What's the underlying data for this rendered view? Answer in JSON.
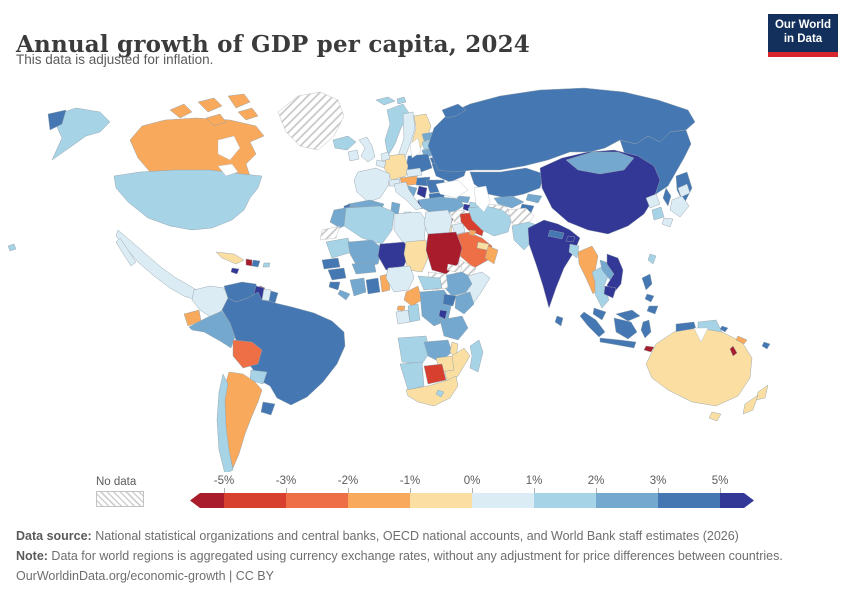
{
  "header": {
    "title": "Annual growth of GDP per capita, 2024",
    "subtitle": "This data is adjusted for inflation.",
    "logo": {
      "line1": "Our World",
      "line2": "in Data",
      "bg_color": "#12305b",
      "accent_color": "#d7262c"
    }
  },
  "legend": {
    "no_data_label": "No data",
    "tick_labels": [
      "-5%",
      "-3%",
      "-2%",
      "-1%",
      "0%",
      "1%",
      "2%",
      "3%",
      "5%"
    ],
    "colors": [
      "#a81c2c",
      "#d7402f",
      "#ee6e45",
      "#f9a95c",
      "#fbdfa2",
      "#dcecf5",
      "#a7d3e6",
      "#74a8ce",
      "#4577b2",
      "#333795"
    ]
  },
  "footer": {
    "data_source_label": "Data source:",
    "data_source_text": " National statistical organizations and central banks, OECD national accounts, and World Bank staff estimates (2026)",
    "note_label": "Note:",
    "note_text": " Data for world regions is aggregated using currency exchange rates, without any adjustment for price differences between countries.",
    "citation": "OurWorldinData.org/economic-growth | CC BY"
  },
  "chart_data": {
    "type": "choropleth_map",
    "title": "Annual growth of GDP per capita, 2024",
    "subtitle": "This data is adjusted for inflation.",
    "unit": "%",
    "legend_bins": [
      "< -5%",
      "-5% to -3%",
      "-3% to -2%",
      "-2% to -1%",
      "-1% to 0%",
      "0% to 1%",
      "1% to 2%",
      "2% to 3%",
      "3% to 5%",
      "> 5%"
    ],
    "countries": {
      "greenland": {
        "label": "Greenland",
        "bin": null
      },
      "canada": {
        "label": "Canada",
        "bin": 3
      },
      "usa": {
        "label": "United States",
        "bin": 6
      },
      "mexico": {
        "label": "Mexico",
        "bin": 5
      },
      "guatemala": {
        "label": "Guatemala",
        "bin": 7
      },
      "honduras": {
        "label": "Honduras",
        "bin": 8
      },
      "nicaragua": {
        "label": "Nicaragua",
        "bin": 9
      },
      "costa_rica": {
        "label": "Costa Rica",
        "bin": 7
      },
      "panama": {
        "label": "Panama",
        "bin": 9
      },
      "cuba": {
        "label": "Cuba",
        "bin": 4
      },
      "jamaica": {
        "label": "Jamaica",
        "bin": 9
      },
      "haiti": {
        "label": "Haiti",
        "bin": 0
      },
      "dominican_republic": {
        "label": "Dominican Republic",
        "bin": 8
      },
      "puerto_rico": {
        "label": "Puerto Rico",
        "bin": 6
      },
      "trinidad": {
        "label": "Trinidad and Tobago",
        "bin": 0
      },
      "colombia": {
        "label": "Colombia",
        "bin": 5
      },
      "venezuela": {
        "label": "Venezuela",
        "bin": 8
      },
      "guyana": {
        "label": "Guyana",
        "bin": 9
      },
      "suriname": {
        "label": "Suriname",
        "bin": 5
      },
      "french_guiana": {
        "label": "French Guiana",
        "bin": 8
      },
      "ecuador": {
        "label": "Ecuador",
        "bin": 3
      },
      "peru": {
        "label": "Peru",
        "bin": 7
      },
      "brazil": {
        "label": "Brazil",
        "bin": 8
      },
      "bolivia": {
        "label": "Bolivia",
        "bin": 2
      },
      "paraguay": {
        "label": "Paraguay",
        "bin": 6
      },
      "uruguay": {
        "label": "Uruguay",
        "bin": 8
      },
      "argentina": {
        "label": "Argentina",
        "bin": 3
      },
      "chile": {
        "label": "Chile",
        "bin": 6
      },
      "falkland": {
        "label": "Falkland Islands",
        "bin": 5
      },
      "iceland": {
        "label": "Iceland",
        "bin": 6
      },
      "ireland": {
        "label": "Ireland",
        "bin": 5
      },
      "uk": {
        "label": "United Kingdom",
        "bin": 5
      },
      "norway": {
        "label": "Norway",
        "bin": 6
      },
      "svalbard": {
        "label": "Svalbard",
        "bin": 6
      },
      "sweden": {
        "label": "Sweden",
        "bin": 5
      },
      "finland": {
        "label": "Finland",
        "bin": 4
      },
      "denmark": {
        "label": "Denmark",
        "bin": 5
      },
      "estonia": {
        "label": "Estonia",
        "bin": 7
      },
      "latvia": {
        "label": "Latvia",
        "bin": 6
      },
      "lithuania": {
        "label": "Lithuania",
        "bin": 7
      },
      "belarus": {
        "label": "Belarus",
        "bin": 8
      },
      "poland": {
        "label": "Poland",
        "bin": 8
      },
      "germany": {
        "label": "Germany",
        "bin": 4
      },
      "netherlands": {
        "label": "Netherlands",
        "bin": 5
      },
      "belgium": {
        "label": "Belgium",
        "bin": 5
      },
      "france": {
        "label": "France",
        "bin": 5
      },
      "switzerland": {
        "label": "Switzerland",
        "bin": 5
      },
      "czechia": {
        "label": "Czechia",
        "bin": 5
      },
      "austria": {
        "label": "Austria",
        "bin": 3
      },
      "hungary": {
        "label": "Hungary",
        "bin": 8
      },
      "ukraine": {
        "label": "Ukraine",
        "bin": 8
      },
      "romania": {
        "label": "Romania",
        "bin": 8
      },
      "bulgaria": {
        "label": "Bulgaria",
        "bin": 8
      },
      "serbia": {
        "label": "Serbia",
        "bin": 9
      },
      "croatia": {
        "label": "Croatia",
        "bin": 7
      },
      "albania": {
        "label": "Albania",
        "bin": 9
      },
      "greece": {
        "label": "Greece",
        "bin": 8
      },
      "italy": {
        "label": "Italy",
        "bin": 5
      },
      "spain": {
        "label": "Spain",
        "bin": 7
      },
      "portugal": {
        "label": "Portugal",
        "bin": 8
      },
      "russia": {
        "label": "Russia",
        "bin": 8
      },
      "kazakhstan": {
        "label": "Kazakhstan",
        "bin": 8
      },
      "uzbekistan": {
        "label": "Uzbekistan",
        "bin": 7
      },
      "turkmenistan": {
        "label": "Turkmenistan",
        "bin": null
      },
      "kyrgyzstan": {
        "label": "Kyrgyzstan",
        "bin": 7
      },
      "tajikistan": {
        "label": "Tajikistan",
        "bin": 8
      },
      "georgia": {
        "label": "Georgia",
        "bin": 7
      },
      "azerbaijan": {
        "label": "Azerbaijan",
        "bin": 6
      },
      "armenia": {
        "label": "Armenia",
        "bin": 9
      },
      "turkey": {
        "label": "Turkey",
        "bin": 7
      },
      "cyprus": {
        "label": "Cyprus",
        "bin": 5
      },
      "syria": {
        "label": "Syria",
        "bin": null
      },
      "lebanon": {
        "label": "Lebanon",
        "bin": 0
      },
      "israel": {
        "label": "Israel",
        "bin": 4
      },
      "jordan": {
        "label": "Jordan",
        "bin": 5
      },
      "iraq": {
        "label": "Iraq",
        "bin": 1
      },
      "saudi_arabia": {
        "label": "Saudi Arabia",
        "bin": 2
      },
      "yemen": {
        "label": "Yemen",
        "bin": null
      },
      "oman": {
        "label": "Oman",
        "bin": 3
      },
      "uae": {
        "label": "United Arab Emirates",
        "bin": 4
      },
      "kuwait": {
        "label": "Kuwait",
        "bin": 3
      },
      "iran": {
        "label": "Iran",
        "bin": 6
      },
      "afghanistan": {
        "label": "Afghanistan",
        "bin": null
      },
      "pakistan": {
        "label": "Pakistan",
        "bin": 6
      },
      "india": {
        "label": "India",
        "bin": 9
      },
      "nepal": {
        "label": "Nepal",
        "bin": 8
      },
      "bhutan": {
        "label": "Bhutan",
        "bin": 9
      },
      "bangladesh": {
        "label": "Bangladesh",
        "bin": 6
      },
      "sri_lanka": {
        "label": "Sri Lanka",
        "bin": 8
      },
      "china": {
        "label": "China",
        "bin": 9
      },
      "mongolia": {
        "label": "Mongolia",
        "bin": 7
      },
      "north_korea": {
        "label": "North Korea",
        "bin": 5
      },
      "south_korea": {
        "label": "South Korea",
        "bin": 6
      },
      "japan": {
        "label": "Japan",
        "bin": 5
      },
      "taiwan": {
        "label": "Taiwan",
        "bin": 6
      },
      "myanmar": {
        "label": "Myanmar",
        "bin": 3
      },
      "thailand": {
        "label": "Thailand",
        "bin": 6
      },
      "laos": {
        "label": "Laos",
        "bin": 7
      },
      "vietnam": {
        "label": "Vietnam",
        "bin": 9
      },
      "cambodia": {
        "label": "Cambodia",
        "bin": 9
      },
      "malaysia": {
        "label": "Malaysia",
        "bin": 8
      },
      "indonesia": {
        "label": "Indonesia",
        "bin": 8
      },
      "philippines": {
        "label": "Philippines",
        "bin": 8
      },
      "east_timor": {
        "label": "East Timor",
        "bin": 0
      },
      "papua_new_guinea": {
        "label": "Papua New Guinea",
        "bin": 6
      },
      "australia": {
        "label": "Australia",
        "bin": 4
      },
      "new_zealand": {
        "label": "New Zealand",
        "bin": 4
      },
      "new_caledonia": {
        "label": "New Caledonia",
        "bin": 3
      },
      "vanuatu": {
        "label": "Vanuatu",
        "bin": 0
      },
      "fiji": {
        "label": "Fiji",
        "bin": 8
      },
      "solomon": {
        "label": "Solomon Islands",
        "bin": 8
      },
      "morocco": {
        "label": "Morocco",
        "bin": 7
      },
      "western_sahara": {
        "label": "Western Sahara",
        "bin": null
      },
      "algeria": {
        "label": "Algeria",
        "bin": 6
      },
      "tunisia": {
        "label": "Tunisia",
        "bin": 7
      },
      "libya": {
        "label": "Libya",
        "bin": 5
      },
      "egypt": {
        "label": "Egypt",
        "bin": 5
      },
      "mauritania": {
        "label": "Mauritania",
        "bin": 6
      },
      "mali": {
        "label": "Mali",
        "bin": 7
      },
      "niger": {
        "label": "Niger",
        "bin": 9
      },
      "chad": {
        "label": "Chad",
        "bin": 4
      },
      "sudan": {
        "label": "Sudan",
        "bin": 0
      },
      "eritrea": {
        "label": "Eritrea",
        "bin": null
      },
      "djibouti": {
        "label": "Djibouti",
        "bin": 9
      },
      "ethiopia": {
        "label": "Ethiopia",
        "bin": 7
      },
      "somalia": {
        "label": "Somalia",
        "bin": 5
      },
      "south_sudan": {
        "label": "South Sudan",
        "bin": null
      },
      "senegal": {
        "label": "Senegal",
        "bin": 8
      },
      "guinea": {
        "label": "Guinea",
        "bin": 8
      },
      "sierra_leone": {
        "label": "Sierra Leone",
        "bin": 8
      },
      "liberia": {
        "label": "Liberia",
        "bin": 7
      },
      "ivory_coast": {
        "label": "Cote d'Ivoire",
        "bin": 7
      },
      "ghana": {
        "label": "Ghana",
        "bin": 8
      },
      "togo_benin": {
        "label": "Togo / Benin",
        "bin": 3
      },
      "burkina_faso": {
        "label": "Burkina Faso",
        "bin": 7
      },
      "nigeria": {
        "label": "Nigeria",
        "bin": 5
      },
      "cameroon": {
        "label": "Cameroon",
        "bin": 3
      },
      "equatorial_guinea": {
        "label": "Equatorial Guinea",
        "bin": 3
      },
      "car": {
        "label": "Central African Republic",
        "bin": 6
      },
      "gabon": {
        "label": "Gabon",
        "bin": 5
      },
      "congo": {
        "label": "Congo",
        "bin": 6
      },
      "drc": {
        "label": "Democratic Republic of Congo",
        "bin": 7
      },
      "uganda": {
        "label": "Uganda",
        "bin": 8
      },
      "kenya": {
        "label": "Kenya",
        "bin": 7
      },
      "rwanda_burundi": {
        "label": "Rwanda / Burundi",
        "bin": 9
      },
      "tanzania": {
        "label": "Tanzania",
        "bin": 7
      },
      "angola": {
        "label": "Angola",
        "bin": 6
      },
      "zambia": {
        "label": "Zambia",
        "bin": 7
      },
      "malawi": {
        "label": "Malawi",
        "bin": 4
      },
      "mozambique": {
        "label": "Mozambique",
        "bin": 4
      },
      "zimbabwe": {
        "label": "Zimbabwe",
        "bin": 4
      },
      "botswana": {
        "label": "Botswana",
        "bin": 1
      },
      "namibia": {
        "label": "Namibia",
        "bin": 6
      },
      "south_africa": {
        "label": "South Africa",
        "bin": 4
      },
      "lesotho": {
        "label": "Lesotho",
        "bin": 6
      },
      "madagascar": {
        "label": "Madagascar",
        "bin": 6
      }
    }
  }
}
